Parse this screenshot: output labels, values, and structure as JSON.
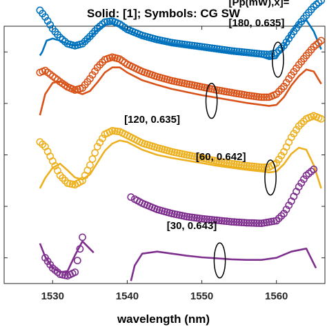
{
  "chart_data": {
    "type": "line",
    "title": "Solid: [1]; Symbols: CG SW",
    "xlabel": "wavelength (nm)",
    "ylabel": "",
    "xlim": [
      1523.5,
      1566.5
    ],
    "ylim": [
      0,
      5
    ],
    "x_ticks": [
      1530,
      1540,
      1550,
      1560
    ],
    "x_tick_labels": [
      "1530",
      "1540",
      "1550",
      "1560"
    ],
    "y_ticks": [
      0.5,
      1.5,
      2.5,
      3.5,
      4.5
    ],
    "grid": false,
    "legend": "none",
    "series": [
      {
        "style": "solid",
        "color": "#0072BD",
        "x": [
          1528.3,
          1528.6,
          1529.2,
          1530,
          1531,
          1532,
          1533,
          1534,
          1535,
          1536,
          1537,
          1538,
          1539,
          1540,
          1542,
          1544,
          1546,
          1548,
          1550,
          1552,
          1554,
          1556,
          1558,
          1559,
          1560,
          1561,
          1562,
          1563,
          1564,
          1565,
          1566
        ],
        "y": [
          4.43,
          4.5,
          4.72,
          4.76,
          4.72,
          4.66,
          4.62,
          4.66,
          4.78,
          4.93,
          5.03,
          5.05,
          5.0,
          4.93,
          4.8,
          4.72,
          4.65,
          4.61,
          4.57,
          4.53,
          4.49,
          4.45,
          4.41,
          4.36,
          4.38,
          4.6,
          4.88,
          5.07,
          5.12,
          4.9,
          4.55
        ]
      },
      {
        "style": "markers",
        "marker": "circle",
        "color": "#0072BD",
        "x": [
          1528.3,
          1529,
          1530,
          1531,
          1532,
          1533,
          1534,
          1535,
          1536,
          1537,
          1538,
          1539,
          1540,
          1542,
          1544,
          1546,
          1548,
          1550,
          1552,
          1554,
          1556,
          1558,
          1559,
          1560,
          1561,
          1562,
          1563,
          1564,
          1565,
          1566
        ],
        "y": [
          5.31,
          5.18,
          4.95,
          4.78,
          4.66,
          4.62,
          4.66,
          4.8,
          4.96,
          5.08,
          5.1,
          5.04,
          4.94,
          4.82,
          4.74,
          4.68,
          4.64,
          4.6,
          4.56,
          4.52,
          4.49,
          4.46,
          4.45,
          4.48,
          4.62,
          4.83,
          5.03,
          5.21,
          5.38,
          5.5
        ]
      },
      {
        "style": "solid",
        "color": "#D95319",
        "x": [
          1528.3,
          1529,
          1530,
          1531,
          1532,
          1533,
          1534,
          1535,
          1536,
          1537,
          1538,
          1539,
          1540,
          1542,
          1544,
          1546,
          1548,
          1550,
          1552,
          1554,
          1556,
          1558,
          1559,
          1560,
          1561,
          1562,
          1563,
          1564,
          1565,
          1566
        ],
        "y": [
          3.27,
          3.68,
          3.9,
          3.93,
          3.84,
          3.73,
          3.68,
          3.74,
          3.91,
          4.1,
          4.2,
          4.2,
          4.1,
          3.95,
          3.86,
          3.78,
          3.72,
          3.66,
          3.61,
          3.56,
          3.51,
          3.47,
          3.45,
          3.47,
          3.62,
          3.85,
          4.03,
          4.16,
          4.12,
          3.88
        ]
      },
      {
        "style": "markers",
        "marker": "circle",
        "color": "#D95319",
        "x": [
          1528.3,
          1529,
          1530,
          1531,
          1532,
          1533,
          1534,
          1535,
          1536,
          1537,
          1538,
          1539,
          1540,
          1542,
          1544,
          1546,
          1548,
          1550,
          1552,
          1554,
          1556,
          1558,
          1559,
          1560,
          1561,
          1562,
          1563,
          1564,
          1565,
          1566
        ],
        "y": [
          4.1,
          4.14,
          4.03,
          3.92,
          3.82,
          3.76,
          3.8,
          3.98,
          4.2,
          4.35,
          4.4,
          4.36,
          4.26,
          4.12,
          4.02,
          3.94,
          3.88,
          3.82,
          3.76,
          3.71,
          3.66,
          3.62,
          3.62,
          3.68,
          3.83,
          4.05,
          4.25,
          4.43,
          4.6,
          4.72
        ]
      },
      {
        "style": "solid",
        "color": "#EDB120",
        "x": [
          1528.3,
          1529,
          1530,
          1531,
          1532,
          1533,
          1534,
          1535,
          1536,
          1537,
          1538,
          1539,
          1540,
          1542,
          1544,
          1546,
          1548,
          1550,
          1552,
          1554,
          1556,
          1558,
          1559,
          1560,
          1561,
          1562,
          1563,
          1564,
          1565,
          1566
        ],
        "y": [
          1.85,
          2.05,
          2.25,
          2.33,
          2.2,
          2.06,
          2.02,
          2.12,
          2.35,
          2.58,
          2.72,
          2.78,
          2.75,
          2.6,
          2.5,
          2.44,
          2.39,
          2.34,
          2.29,
          2.25,
          2.21,
          2.18,
          2.16,
          2.18,
          2.32,
          2.52,
          2.64,
          2.6,
          2.3,
          1.85
        ]
      },
      {
        "style": "markers",
        "marker": "circle",
        "color": "#EDB120",
        "x": [
          1528.3,
          1529,
          1530,
          1531,
          1532,
          1533,
          1534,
          1535,
          1536,
          1537,
          1538,
          1539,
          1540,
          1542,
          1544,
          1546,
          1548,
          1550,
          1552,
          1554,
          1556,
          1558,
          1559,
          1560,
          1561,
          1562,
          1563,
          1564,
          1565,
          1566
        ],
        "y": [
          2.75,
          2.66,
          2.38,
          2.1,
          1.95,
          1.92,
          2.0,
          2.3,
          2.66,
          2.9,
          2.97,
          2.95,
          2.88,
          2.73,
          2.64,
          2.56,
          2.5,
          2.44,
          2.38,
          2.33,
          2.29,
          2.26,
          2.26,
          2.34,
          2.56,
          2.84,
          3.06,
          3.2,
          3.26,
          3.2
        ]
      },
      {
        "style": "solid",
        "color": "#7E2F8E",
        "x": [
          1528.3,
          1529,
          1530,
          1531,
          1532,
          1533,
          1534,
          1535.5
        ],
        "y": [
          0.78,
          0.52,
          0.3,
          0.22,
          0.24,
          0.55,
          0.82,
          0.6
        ]
      },
      {
        "style": "markers",
        "marker": "circle",
        "color": "#7E2F8E",
        "x": [
          1529,
          1530,
          1531,
          1532,
          1533,
          1534
        ],
        "y": [
          0.5,
          0.3,
          0.18,
          0.15,
          0.22,
          0.9
        ]
      },
      {
        "style": "solid",
        "color": "#7E2F8E",
        "x": [
          1540.5,
          1541,
          1542,
          1544,
          1546,
          1548,
          1550,
          1552,
          1554,
          1556,
          1558,
          1560,
          1562,
          1564,
          1565.3
        ],
        "y": [
          0.05,
          0.35,
          0.58,
          0.62,
          0.58,
          0.54,
          0.51,
          0.49,
          0.47,
          0.46,
          0.46,
          0.5,
          0.62,
          0.68,
          0.3
        ]
      },
      {
        "style": "markers",
        "marker": "circle",
        "color": "#7E2F8E",
        "x": [
          1540.5,
          1541,
          1542,
          1544,
          1546,
          1548,
          1550,
          1552,
          1554,
          1556,
          1558,
          1560,
          1561,
          1562,
          1563,
          1564,
          1565
        ],
        "y": [
          1.68,
          1.64,
          1.56,
          1.44,
          1.36,
          1.3,
          1.26,
          1.23,
          1.2,
          1.18,
          1.17,
          1.22,
          1.36,
          1.6,
          1.88,
          2.1,
          2.22
        ]
      }
    ],
    "annotations": [
      {
        "text": "[Pp(mW),x]=",
        "x": 1553.6,
        "y": 5.4
      },
      {
        "text": "[180, 0.635]",
        "x": 1553.6,
        "y": 5.0
      },
      {
        "text": "[120, 0.635]",
        "x": 1539.6,
        "y": 3.12
      },
      {
        "text": "[60, 0.642]",
        "x": 1549.2,
        "y": 2.4
      },
      {
        "text": "[30, 0.643]",
        "x": 1545.3,
        "y": 1.06
      }
    ],
    "ellipses": [
      {
        "cx": 1560.2,
        "cy": 4.35,
        "rx": 0.75,
        "ry": 0.34
      },
      {
        "cx": 1551.3,
        "cy": 3.55,
        "rx": 0.75,
        "ry": 0.34
      },
      {
        "cx": 1559.2,
        "cy": 2.06,
        "rx": 0.75,
        "ry": 0.34
      },
      {
        "cx": 1552.4,
        "cy": 0.45,
        "rx": 0.75,
        "ry": 0.34
      }
    ]
  }
}
